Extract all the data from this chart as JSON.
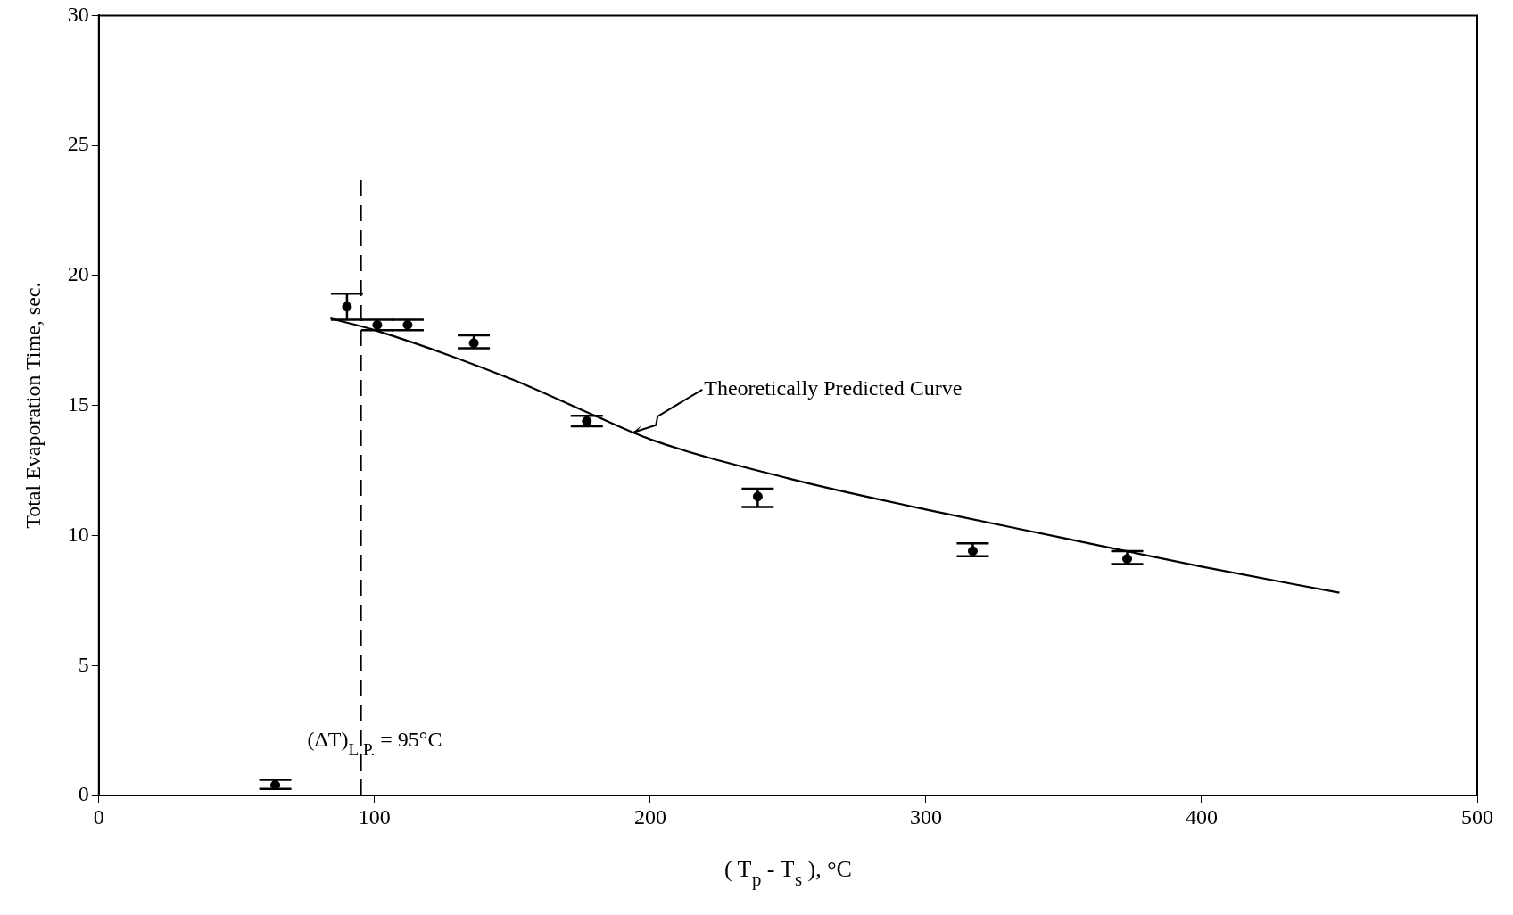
{
  "chart_data": {
    "type": "scatter",
    "xlabel": "( T$_{p}$ - T$_{s}$ ), °C",
    "ylabel": "Total Evaporation Time, sec.",
    "xlim": [
      0,
      500
    ],
    "ylim": [
      0,
      30
    ],
    "xticks": [
      0,
      100,
      200,
      300,
      400,
      500
    ],
    "yticks": [
      0,
      5,
      10,
      15,
      20,
      25,
      30
    ],
    "grid": false,
    "legend": false,
    "series": [
      {
        "type": "scatter",
        "color": "#000000",
        "marker": "circle",
        "x": [
          64,
          90,
          101,
          112,
          136,
          177,
          239,
          317,
          373
        ],
        "values": [
          0.4,
          18.8,
          18.1,
          18.1,
          17.4,
          14.4,
          11.5,
          9.4,
          9.1
        ],
        "errors": [
          [
            0.25,
            0.6
          ],
          [
            18.3,
            19.3
          ],
          [
            17.9,
            18.3
          ],
          [
            17.9,
            18.3
          ],
          [
            17.2,
            17.7
          ],
          [
            14.2,
            14.6
          ],
          [
            11.1,
            11.8
          ],
          [
            9.2,
            9.7
          ],
          [
            8.9,
            9.4
          ]
        ]
      },
      {
        "type": "line",
        "color": "#000000",
        "marker": "none",
        "line_style": "solid",
        "x": [
          84,
          100,
          150,
          180,
          200,
          250,
          300,
          350,
          400,
          450
        ],
        "values": [
          18.35,
          17.9,
          16.0,
          14.6,
          13.7,
          12.2,
          11.0,
          9.9,
          8.8,
          7.8
        ]
      }
    ],
    "ref_lines": [
      {
        "axis": "x",
        "value": 95,
        "label": "(ΔT)$_{L.P.}$ = 95°C",
        "line_style": "dashed",
        "color": "#000000"
      }
    ],
    "annotations": [
      {
        "text": "Theoretically Predicted Curve",
        "x": 193,
        "y": 13.9
      }
    ]
  }
}
